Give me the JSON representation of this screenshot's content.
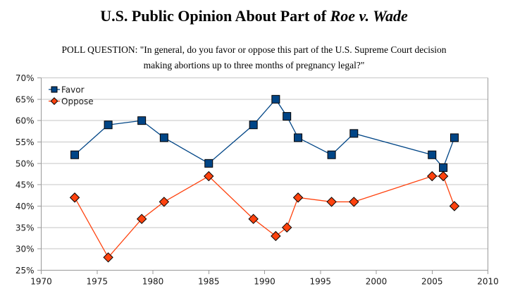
{
  "title": {
    "prefix": "U.S. Public Opinion About Part of ",
    "italic": "Roe v. Wade"
  },
  "subtitle": {
    "line1": "POLL QUESTION: \"In general, do you favor or oppose this part of the U.S. Supreme Court decision",
    "line2": "making abortions up to three months of pregnancy legal?\""
  },
  "chart_data": {
    "type": "line",
    "x": [
      1973,
      1976,
      1979,
      1981,
      1985,
      1989,
      1991,
      1992,
      1993,
      1996,
      1998,
      2005,
      2006,
      2007
    ],
    "series": [
      {
        "name": "Favor",
        "marker": "square",
        "color": "#004586",
        "values": [
          52,
          59,
          60,
          56,
          50,
          59,
          65,
          61,
          56,
          52,
          57,
          52,
          49,
          56
        ]
      },
      {
        "name": "Oppose",
        "marker": "diamond",
        "color": "#FF420E",
        "values": [
          42,
          28,
          37,
          41,
          47,
          37,
          33,
          35,
          42,
          41,
          41,
          47,
          47,
          40
        ]
      }
    ],
    "x_axis": {
      "min": 1970,
      "max": 2010,
      "tick_step": 5,
      "tick_labels": [
        "1970",
        "1975",
        "1980",
        "1985",
        "1990",
        "1995",
        "2000",
        "2005",
        "2010"
      ]
    },
    "y_axis": {
      "min": 25,
      "max": 70,
      "tick_step": 5,
      "unit": "%",
      "tick_labels": [
        "25%",
        "30%",
        "35%",
        "40%",
        "45%",
        "50%",
        "55%",
        "60%",
        "65%",
        "70%"
      ]
    },
    "grid": "horizontal",
    "legend": {
      "position": "top-left-inside",
      "items": [
        "Favor",
        "Oppose"
      ]
    },
    "colors": {
      "grid": "#c6c6c6",
      "axis": "#9a9a9a",
      "text": "#1a1a1a",
      "marker_outline": "#000000",
      "background": "#ffffff"
    }
  }
}
